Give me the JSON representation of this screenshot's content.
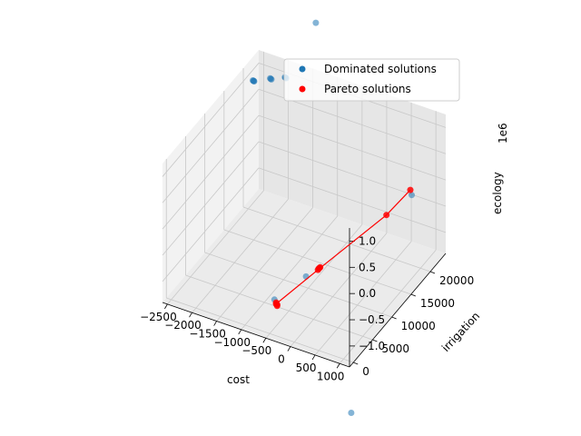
{
  "colors": {
    "dominated": "#1f77b4",
    "pareto": "#ff0000",
    "pane_left": "#f2f2f2",
    "pane_right": "#e6e6e6",
    "pane_floor": "#ebebeb",
    "grid": "#c8c8c8"
  },
  "chart_data": {
    "type": "scatter",
    "projection": "3d",
    "legend_position": "top-right",
    "grid": true,
    "axes": {
      "x": {
        "label": "cost",
        "ticks": [
          "−2500",
          "−2000",
          "−1500",
          "−1000",
          "−500",
          "0",
          "500",
          "1000"
        ],
        "range": [
          -2600,
          1200
        ]
      },
      "y": {
        "label": "irrigation",
        "ticks": [
          "0",
          "5000",
          "10000",
          "15000",
          "20000"
        ],
        "range": [
          -1000,
          24000
        ]
      },
      "z": {
        "label": "ecology",
        "ticks": [
          "−1.0",
          "−0.5",
          "0.0",
          "0.5",
          "1.0"
        ],
        "range": [
          -1.4,
          1.25
        ],
        "offset_text": "1e6"
      }
    },
    "series": [
      {
        "name": "Dominated solutions",
        "points": [
          [
            -2550,
            22000,
            0.85
          ],
          [
            -2540,
            22050,
            0.84
          ],
          [
            -2560,
            21950,
            0.86
          ],
          [
            -2545,
            22020,
            0.845
          ],
          [
            -2200,
            22000,
            1.0
          ],
          [
            -2190,
            22050,
            0.99
          ],
          [
            -2210,
            21980,
            1.01
          ],
          [
            -1900,
            22000,
            1.12
          ],
          [
            -1890,
            22040,
            1.11
          ],
          [
            -1910,
            21960,
            1.13
          ],
          [
            -1400,
            23500,
            2.2
          ],
          [
            -200,
            5600,
            -0.7
          ],
          [
            -600,
            2500,
            -1.0
          ],
          [
            900,
            19000,
            0.05
          ],
          [
            1000,
            2000,
            -2.6
          ]
        ]
      },
      {
        "name": "Pareto solutions",
        "points": [
          [
            -550,
            2300,
            -1.05
          ],
          [
            -520,
            2200,
            -1.07
          ],
          [
            -560,
            2450,
            -1.04
          ],
          [
            -530,
            2350,
            -1.06
          ],
          [
            -50,
            7000,
            -0.62
          ],
          [
            -30,
            7100,
            -0.6
          ],
          [
            -60,
            6900,
            -0.64
          ],
          [
            -40,
            7050,
            -0.61
          ],
          [
            700,
            15000,
            -0.05
          ],
          [
            950,
            18000,
            0.25
          ]
        ],
        "line": [
          [
            -550,
            2300,
            -1.05
          ],
          [
            -40,
            7000,
            -0.62
          ],
          [
            700,
            15000,
            -0.05
          ],
          [
            950,
            18000,
            0.25
          ]
        ]
      }
    ]
  }
}
